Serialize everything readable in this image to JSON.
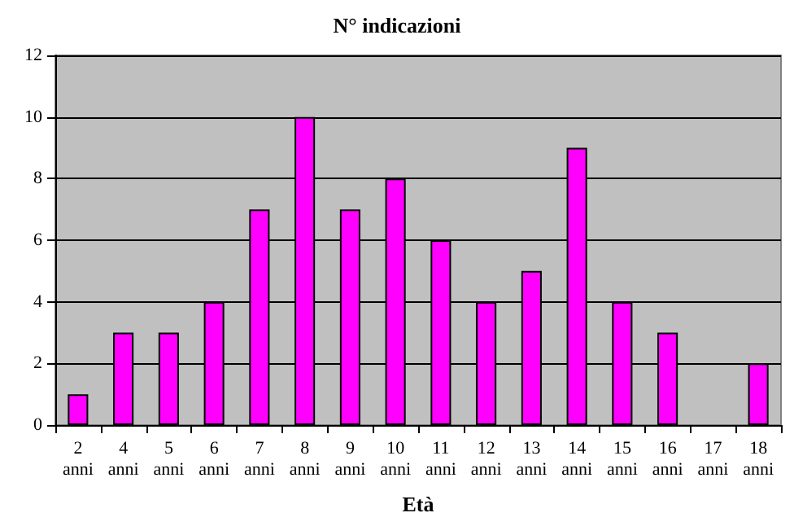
{
  "chart_data": {
    "type": "bar",
    "title": "N° indicazioni",
    "xlabel": "Età",
    "categories": [
      "2 anni",
      "4 anni",
      "5 anni",
      "6 anni",
      "7 anni",
      "8 anni",
      "9 anni",
      "10 anni",
      "11 anni",
      "12 anni",
      "13 anni",
      "14 anni",
      "15 anni",
      "16 anni",
      "17 anni",
      "18 anni"
    ],
    "values": [
      1,
      3,
      3,
      4,
      7,
      10,
      7,
      8,
      6,
      4,
      5,
      9,
      4,
      3,
      0,
      2
    ],
    "color": "#ff00ff",
    "ylim": [
      0,
      12
    ],
    "yticks": [
      0,
      2,
      4,
      6,
      8,
      10,
      12
    ],
    "grid": "y"
  }
}
